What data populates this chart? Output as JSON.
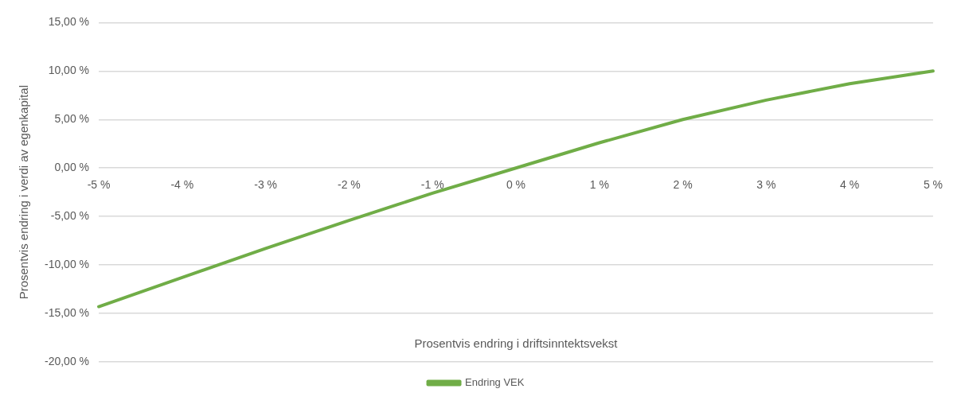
{
  "chart_data": {
    "type": "line",
    "xlabel": "Prosentvis endring i driftsinntektsvekst",
    "ylabel": "Prosentvis endring i verdi av egenkapital",
    "categories": [
      "-5 %",
      "-4 %",
      "-3 %",
      "-2 %",
      "-1 %",
      "0 %",
      "1 %",
      "2 %",
      "3 %",
      "4 %",
      "5 %"
    ],
    "series": [
      {
        "name": "Endring VEK",
        "color": "#70ad47",
        "values": [
          -14.3,
          -11.3,
          -8.3,
          -5.4,
          -2.6,
          0,
          2.6,
          5.0,
          7.0,
          8.7,
          10.0
        ]
      }
    ],
    "ylim": [
      -20,
      15
    ],
    "yticks": [
      {
        "value": -20,
        "label": "-20,00 %"
      },
      {
        "value": -15,
        "label": "-15,00 %"
      },
      {
        "value": -10,
        "label": "-10,00 %"
      },
      {
        "value": -5,
        "label": "-5,00 %"
      },
      {
        "value": 0,
        "label": "0,00 %"
      },
      {
        "value": 5,
        "label": "5,00 %"
      },
      {
        "value": 10,
        "label": "10,00 %"
      },
      {
        "value": 15,
        "label": "15,00 %"
      }
    ],
    "grid": "y",
    "legend": "bottom",
    "marker": "none",
    "line_style": "solid"
  }
}
